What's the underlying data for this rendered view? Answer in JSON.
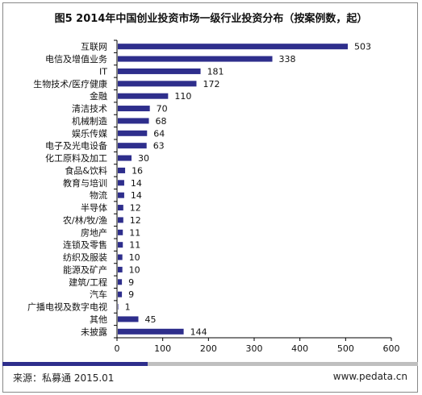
{
  "chart_data": {
    "type": "bar",
    "orientation": "horizontal",
    "title": "图5 2014年中国创业投资市场一级行业投资分布（按案例数，起）",
    "categories": [
      "互联网",
      "电信及增值业务",
      "IT",
      "生物技术/医疗健康",
      "金融",
      "清洁技术",
      "机械制造",
      "娱乐传媒",
      "电子及光电设备",
      "化工原料及加工",
      "食品&饮料",
      "教育与培训",
      "物流",
      "半导体",
      "农/林/牧/渔",
      "房地产",
      "连锁及零售",
      "纺织及服装",
      "能源及矿产",
      "建筑/工程",
      "汽车",
      "广播电视及数字电视",
      "其他",
      "未披露"
    ],
    "values": [
      503,
      338,
      181,
      172,
      110,
      70,
      68,
      64,
      63,
      30,
      16,
      14,
      14,
      12,
      12,
      11,
      11,
      10,
      10,
      9,
      9,
      1,
      45,
      144
    ],
    "xlim": [
      0,
      600
    ],
    "xticks": [
      0,
      100,
      200,
      300,
      400,
      500,
      600
    ],
    "bar_color": "#2e2e8c",
    "grid": false
  },
  "footer": {
    "source": "来源：私募通 2015.01",
    "website": "www.pedata.cn"
  },
  "colors": {
    "bar": "#2e2e8c",
    "footer_bar_bg": "#bfbfbf",
    "footer_bar_fill": "#2e2e8c"
  }
}
